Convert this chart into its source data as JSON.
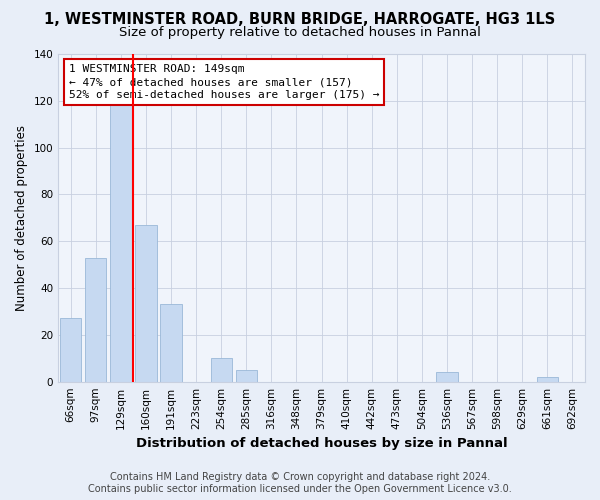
{
  "title": "1, WESTMINSTER ROAD, BURN BRIDGE, HARROGATE, HG3 1LS",
  "subtitle": "Size of property relative to detached houses in Pannal",
  "xlabel": "Distribution of detached houses by size in Pannal",
  "ylabel": "Number of detached properties",
  "categories": [
    "66sqm",
    "97sqm",
    "129sqm",
    "160sqm",
    "191sqm",
    "223sqm",
    "254sqm",
    "285sqm",
    "316sqm",
    "348sqm",
    "379sqm",
    "410sqm",
    "442sqm",
    "473sqm",
    "504sqm",
    "536sqm",
    "567sqm",
    "598sqm",
    "629sqm",
    "661sqm",
    "692sqm"
  ],
  "values": [
    27,
    53,
    118,
    67,
    33,
    0,
    10,
    5,
    0,
    0,
    0,
    0,
    0,
    0,
    0,
    4,
    0,
    0,
    0,
    2,
    0
  ],
  "bar_color": "#c6d9f1",
  "bar_edge_color": "#9ab8d8",
  "vline_bin_index": 3,
  "annotation_lines": [
    "1 WESTMINSTER ROAD: 149sqm",
    "← 47% of detached houses are smaller (157)",
    "52% of semi-detached houses are larger (175) →"
  ],
  "annotation_box_color": "#cc0000",
  "ylim": [
    0,
    140
  ],
  "yticks": [
    0,
    20,
    40,
    60,
    80,
    100,
    120,
    140
  ],
  "footer": "Contains HM Land Registry data © Crown copyright and database right 2024.\nContains public sector information licensed under the Open Government Licence v3.0.",
  "bg_color": "#e8eef8",
  "plot_bg_color": "#f0f4fb",
  "grid_color": "#c8d0e0",
  "title_fontsize": 10.5,
  "subtitle_fontsize": 9.5,
  "xlabel_fontsize": 9.5,
  "ylabel_fontsize": 8.5,
  "tick_fontsize": 7.5,
  "footer_fontsize": 7,
  "annotation_fontsize": 8
}
